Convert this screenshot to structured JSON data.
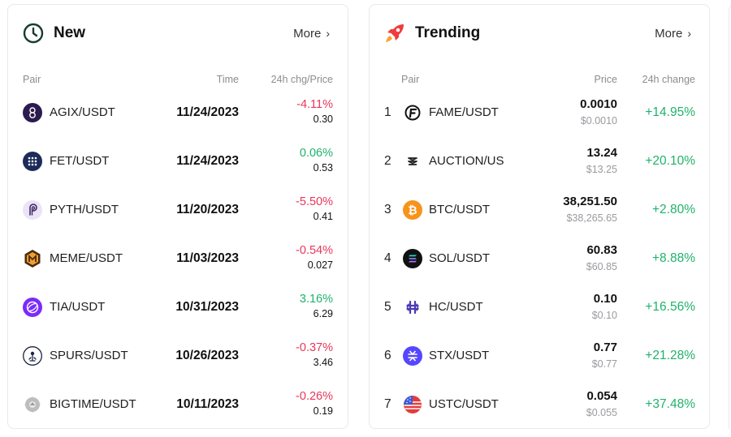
{
  "new_card": {
    "title": "New",
    "more_label": "More",
    "icon": "clock-icon",
    "columns": {
      "pair": "Pair",
      "time": "Time",
      "chg_price": "24h chg/Price"
    },
    "rows": [
      {
        "pair": "AGIX/USDT",
        "time": "11/24/2023",
        "change": "-4.11%",
        "price": "0.30",
        "trend": "down",
        "icon": "agix-icon"
      },
      {
        "pair": "FET/USDT",
        "time": "11/24/2023",
        "change": "0.06%",
        "price": "0.53",
        "trend": "up",
        "icon": "fet-icon"
      },
      {
        "pair": "PYTH/USDT",
        "time": "11/20/2023",
        "change": "-5.50%",
        "price": "0.41",
        "trend": "down",
        "icon": "pyth-icon"
      },
      {
        "pair": "MEME/USDT",
        "time": "11/03/2023",
        "change": "-0.54%",
        "price": "0.027",
        "trend": "down",
        "icon": "meme-icon"
      },
      {
        "pair": "TIA/USDT",
        "time": "10/31/2023",
        "change": "3.16%",
        "price": "6.29",
        "trend": "up",
        "icon": "tia-icon"
      },
      {
        "pair": "SPURS/USDT",
        "time": "10/26/2023",
        "change": "-0.37%",
        "price": "3.46",
        "trend": "down",
        "icon": "spurs-icon"
      },
      {
        "pair": "BIGTIME/USDT",
        "time": "10/11/2023",
        "change": "-0.26%",
        "price": "0.19",
        "trend": "down",
        "icon": "bigtime-icon"
      }
    ]
  },
  "trending_card": {
    "title": "Trending",
    "more_label": "More",
    "icon": "rocket-icon",
    "columns": {
      "pair": "Pair",
      "price": "Price",
      "change": "24h change"
    },
    "rows": [
      {
        "rank": "1",
        "pair": "FAME/USDT",
        "price": "0.0010",
        "price_usd": "$0.0010",
        "change": "+14.95%",
        "icon": "fame-icon"
      },
      {
        "rank": "2",
        "pair": "AUCTION/US",
        "price": "13.24",
        "price_usd": "$13.25",
        "change": "+20.10%",
        "icon": "auction-icon"
      },
      {
        "rank": "3",
        "pair": "BTC/USDT",
        "price": "38,251.50",
        "price_usd": "$38,265.65",
        "change": "+2.80%",
        "icon": "btc-icon"
      },
      {
        "rank": "4",
        "pair": "SOL/USDT",
        "price": "60.83",
        "price_usd": "$60.85",
        "change": "+8.88%",
        "icon": "sol-icon"
      },
      {
        "rank": "5",
        "pair": "HC/USDT",
        "price": "0.10",
        "price_usd": "$0.10",
        "change": "+16.56%",
        "icon": "hc-icon"
      },
      {
        "rank": "6",
        "pair": "STX/USDT",
        "price": "0.77",
        "price_usd": "$0.77",
        "change": "+21.28%",
        "icon": "stx-icon"
      },
      {
        "rank": "7",
        "pair": "USTC/USDT",
        "price": "0.054",
        "price_usd": "$0.055",
        "change": "+37.48%",
        "icon": "ustc-icon"
      }
    ]
  },
  "colors": {
    "negative": "#e8365a",
    "positive": "#1fb26b",
    "muted": "#8c8c92"
  }
}
